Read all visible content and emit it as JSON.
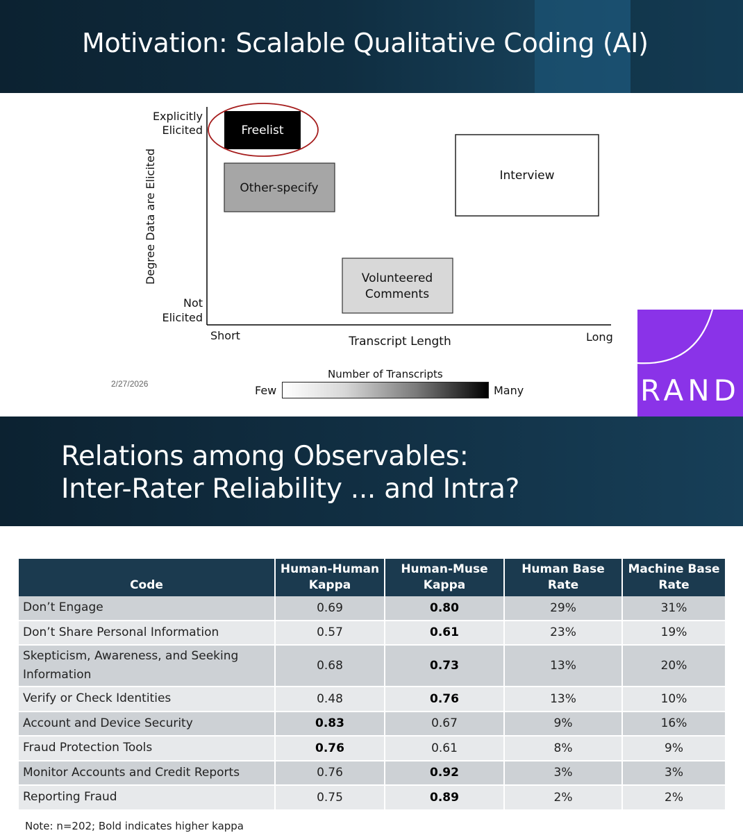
{
  "slide1": {
    "title": "Motivation: Scalable Qualitative Coding (AI)",
    "date": "2/27/2026",
    "logo_text": "RAND",
    "brand_color": "#8a33e8",
    "diagram": {
      "y_axis_title": "Degree Data are Elicited",
      "y_top_label": [
        "Explicitly",
        "Elicited"
      ],
      "y_bottom_label": [
        "Not",
        "Elicited"
      ],
      "x_axis_title": "Transcript Length",
      "x_left_label": "Short",
      "x_right_label": "Long",
      "boxes": {
        "freelist": "Freelist",
        "other_specify": "Other-specify",
        "interview": "Interview",
        "volunteered": [
          "Volunteered",
          "Comments"
        ]
      },
      "highlighted": "Freelist"
    },
    "legend": {
      "title": "Number of Transcripts",
      "low": "Few",
      "high": "Many"
    }
  },
  "slide2": {
    "title_line1": "Relations among Observables:",
    "title_line2": "Inter-Rater Reliability ... and Intra?",
    "table": {
      "headers": {
        "code": "Code",
        "hh_1": "Human-Human",
        "hh_2": "Kappa",
        "hm_1": "Human-Muse",
        "hm_2": "Kappa",
        "hb_1": "Human Base",
        "hb_2": "Rate",
        "mb_1": "Machine Base",
        "mb_2": "Rate"
      },
      "rows": [
        {
          "code": "Don’t Engage",
          "hh": "0.69",
          "hm": "0.80",
          "hb": "29%",
          "mb": "31%"
        },
        {
          "code": "Don’t Share Personal Information",
          "hh": "0.57",
          "hm": "0.61",
          "hb": "23%",
          "mb": "19%"
        },
        {
          "code": "Skepticism, Awareness, and Seeking Information",
          "hh": "0.68",
          "hm": "0.73",
          "hb": "13%",
          "mb": "20%"
        },
        {
          "code": "Verify or Check Identities",
          "hh": "0.48",
          "hm": "0.76",
          "hb": "13%",
          "mb": "10%"
        },
        {
          "code": "Account and Device Security",
          "hh": "0.83",
          "hm": "0.67",
          "hb": "9%",
          "mb": "16%"
        },
        {
          "code": "Fraud Protection Tools",
          "hh": "0.76",
          "hm": "0.61",
          "hb": "8%",
          "mb": "9%"
        },
        {
          "code": "Monitor Accounts and Credit Reports",
          "hh": "0.76",
          "hm": "0.92",
          "hb": "3%",
          "mb": "3%"
        },
        {
          "code": "Reporting Fraud",
          "hh": "0.75",
          "hm": "0.89",
          "hb": "2%",
          "mb": "2%"
        }
      ]
    },
    "note": "Note: n=202; Bold indicates higher kappa"
  }
}
